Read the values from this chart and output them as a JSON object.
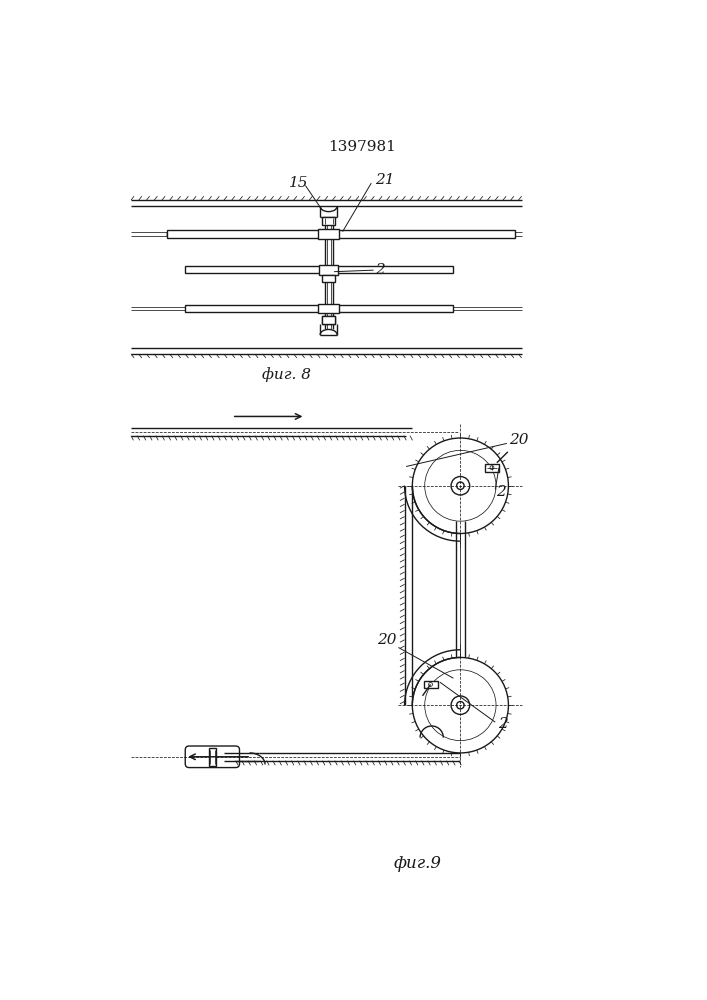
{
  "title": "1397981",
  "title_fontsize": 11,
  "fig8_label": "фиг. 8",
  "fig9_label": "фиг.9",
  "label_15": "15",
  "label_21": "21",
  "label_2_fig8": "2",
  "label_20_top": "20",
  "label_20_mid": "20",
  "label_2_top": "2",
  "label_2_bot": "2",
  "bg_color": "#ffffff",
  "line_color": "#1a1a1a",
  "lw": 1.0,
  "tlw": 0.55
}
